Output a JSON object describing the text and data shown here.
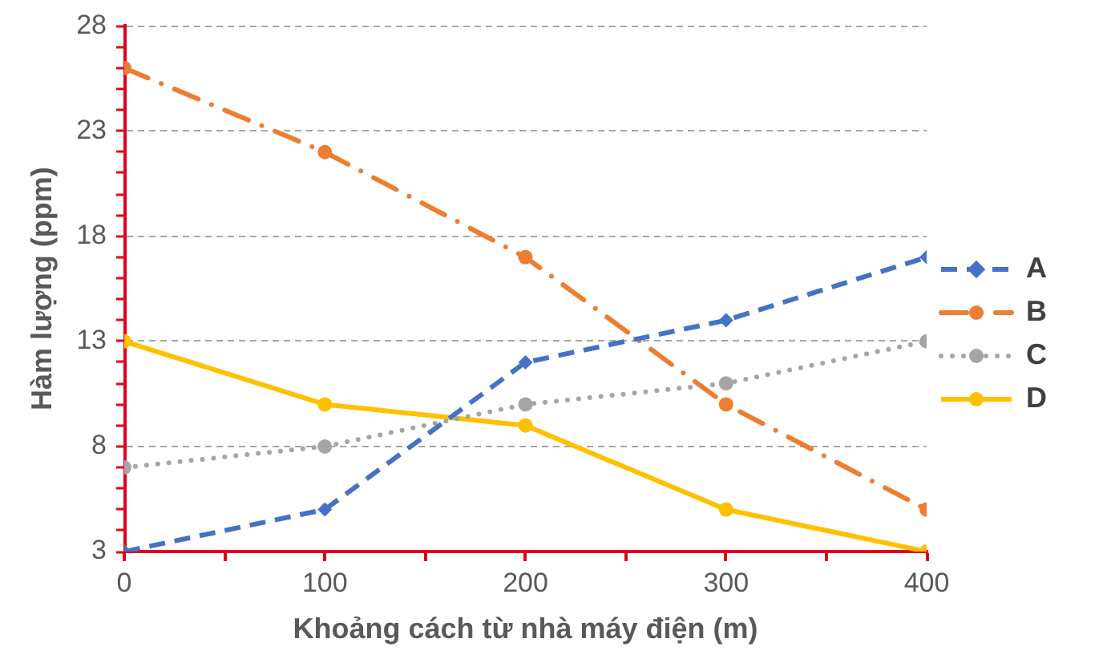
{
  "chart_data": {
    "type": "line",
    "xlabel": "Khoảng cách từ nhà máy điện (m)",
    "ylabel": "Hàm lượng (ppm)",
    "x": [
      0,
      100,
      200,
      300,
      400
    ],
    "xlim": [
      0,
      400
    ],
    "xticks": [
      0,
      {
        "value": 50,
        "label": null
      },
      100,
      {
        "value": 150,
        "label": null
      },
      200,
      {
        "value": 250,
        "label": null
      },
      300,
      {
        "value": 350,
        "label": null
      },
      400
    ],
    "ylim": [
      3,
      28
    ],
    "yticks": [
      3,
      {
        "value": 4,
        "label": null
      },
      {
        "value": 5,
        "label": null
      },
      {
        "value": 6,
        "label": null
      },
      {
        "value": 7,
        "label": null
      },
      8,
      {
        "value": 9,
        "label": null
      },
      {
        "value": 10,
        "label": null
      },
      {
        "value": 11,
        "label": null
      },
      {
        "value": 12,
        "label": null
      },
      13,
      {
        "value": 14,
        "label": null
      },
      {
        "value": 15,
        "label": null
      },
      {
        "value": 16,
        "label": null
      },
      {
        "value": 17,
        "label": null
      },
      18,
      {
        "value": 19,
        "label": null
      },
      {
        "value": 20,
        "label": null
      },
      {
        "value": 21,
        "label": null
      },
      {
        "value": 22,
        "label": null
      },
      23,
      {
        "value": 24,
        "label": null
      },
      {
        "value": 25,
        "label": null
      },
      {
        "value": 26,
        "label": null
      },
      {
        "value": 27,
        "label": null
      },
      28
    ],
    "grid": "y",
    "legend": "right",
    "series": [
      {
        "name": "A",
        "color": "#4472c4",
        "values": [
          3,
          5,
          12,
          14,
          17
        ],
        "marker": "diamond",
        "line_style": "dashed"
      },
      {
        "name": "B",
        "color": "#ed7d31",
        "values": [
          26,
          22,
          17,
          10,
          5
        ],
        "marker": "circle",
        "line_style": "dashdot"
      },
      {
        "name": "C",
        "color": "#a5a5a5",
        "values": [
          7,
          8,
          10,
          11,
          13
        ],
        "marker": "circle",
        "line_style": "dotted"
      },
      {
        "name": "D",
        "color": "#ffc000",
        "values": [
          13,
          10,
          9,
          5,
          3
        ],
        "marker": "circle",
        "line_style": "solid"
      }
    ]
  }
}
